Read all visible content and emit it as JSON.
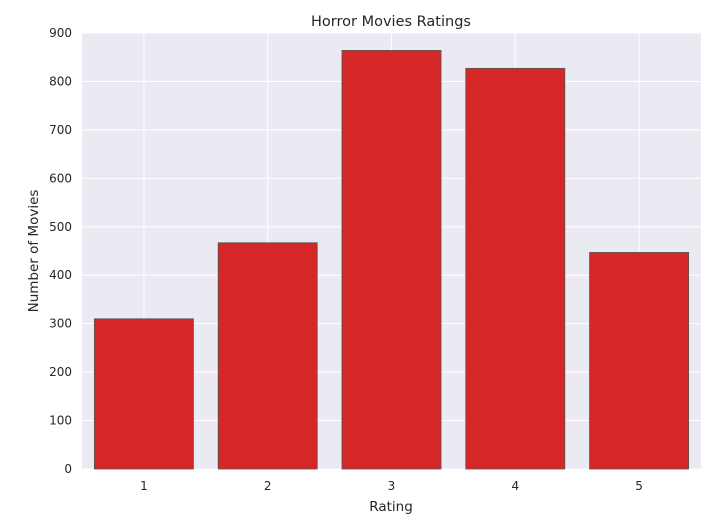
{
  "chart_data": {
    "type": "bar",
    "title": "Horror Movies Ratings",
    "xlabel": "Rating",
    "ylabel": "Number of Movies",
    "categories": [
      "1",
      "2",
      "3",
      "4",
      "5"
    ],
    "values": [
      310,
      467,
      864,
      827,
      447
    ],
    "ylim": [
      0,
      900
    ],
    "yticks": [
      "0",
      "100",
      "200",
      "300",
      "400",
      "500",
      "600",
      "700",
      "800",
      "900"
    ],
    "grid": true,
    "bar_color": "#d62728",
    "plot_background": "#eaeaf2",
    "grid_color": "#ffffff"
  }
}
